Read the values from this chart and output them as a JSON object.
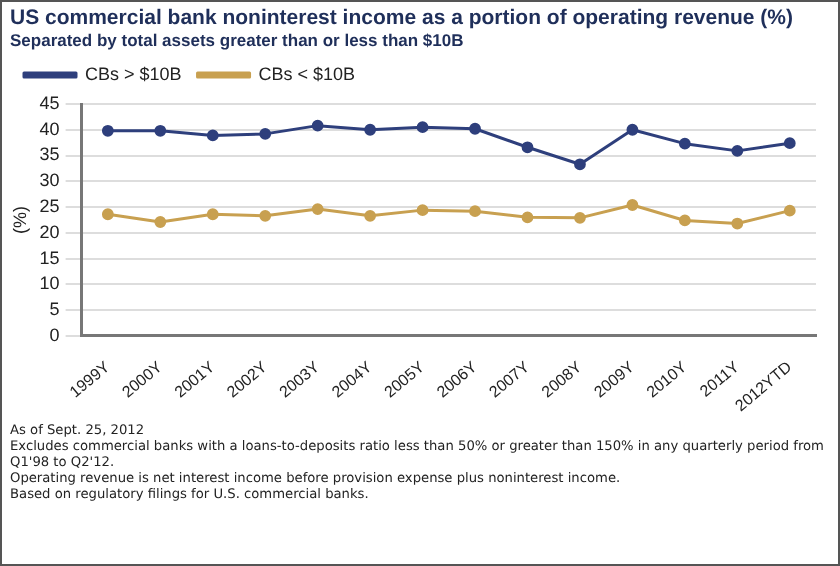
{
  "chart_data": {
    "type": "line",
    "title": "US commercial bank noninterest income as a portion of operating revenue (%)",
    "subtitle": "Separated by total assets greater than or less than $10B",
    "ylabel": "(%)",
    "categories": [
      "1999Y",
      "2000Y",
      "2001Y",
      "2002Y",
      "2003Y",
      "2004Y",
      "2005Y",
      "2006Y",
      "2007Y",
      "2008Y",
      "2009Y",
      "2010Y",
      "2011Y",
      "2012YTD"
    ],
    "series": [
      {
        "name": "CBs > $10B",
        "color": "#2e3f7c",
        "values": [
          39.8,
          39.8,
          38.9,
          39.2,
          40.8,
          40.0,
          40.5,
          40.2,
          36.6,
          33.3,
          40.0,
          37.3,
          35.9,
          37.4
        ]
      },
      {
        "name": "CBs < $10B",
        "color": "#c8a050",
        "values": [
          23.6,
          22.1,
          23.6,
          23.3,
          24.6,
          23.3,
          24.4,
          24.2,
          23.0,
          22.9,
          25.4,
          22.4,
          21.8,
          24.3
        ]
      }
    ],
    "ylim": [
      0,
      45
    ],
    "yticks": [
      0,
      5,
      10,
      15,
      20,
      25,
      30,
      35,
      40,
      45
    ],
    "grid": "y",
    "legend": "top",
    "marker": "circle",
    "line_style": "solid",
    "annotations": [
      "As of Sept. 25, 2012",
      "Excludes commercial banks with a loans-to-deposits ratio less than 50% or greater than 150% in any quarterly period from Q1'98 to Q2'12.",
      "Operating revenue is net interest income before provision expense plus noninterest income.",
      "Based on regulatory filings for U.S. commercial banks."
    ]
  }
}
